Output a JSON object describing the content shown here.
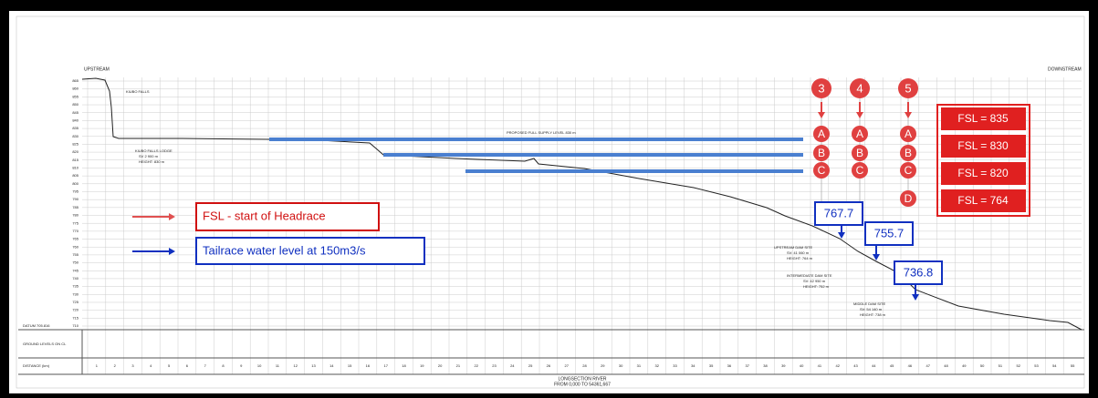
{
  "header": {
    "upstream": "UPSTREAM",
    "downstream": "DOWNSTREAM"
  },
  "annotations": {
    "falls": "KIUBO FALLS",
    "lodge": [
      "KIUBO FALLS LODGE",
      "SV 2 900 m",
      "HEIGHT: 830 m"
    ],
    "fsl_line": "PROPOSED FULL SUPPLY LEVEL 830 m",
    "upstream_dam": [
      "UPSTREAM DAM SITE",
      "SV: 41 060 m",
      "HEIGHT: 764 m"
    ],
    "intermediate_dam": [
      "INTERMEDIATE DAM SITE",
      "SV: 42 950 m",
      "HEIGHT: 752 m"
    ],
    "middle_dam": [
      "MIDDLE DAM SITE",
      "SV: 54 140 m",
      "HEIGHT: 738 m"
    ],
    "datum": "DATUM 705.816"
  },
  "y_axis": [
    865,
    860,
    855,
    850,
    845,
    840,
    835,
    830,
    825,
    820,
    815,
    810,
    805,
    800,
    795,
    790,
    785,
    780,
    775,
    770,
    765,
    760,
    755,
    750,
    745,
    740,
    735,
    730,
    725,
    720,
    715,
    710
  ],
  "sites": [
    {
      "number": "3",
      "letters": [
        "A",
        "B",
        "C"
      ]
    },
    {
      "number": "4",
      "letters": [
        "A",
        "B",
        "C"
      ]
    },
    {
      "number": "5",
      "letters": [
        "A",
        "B",
        "C",
        "D"
      ]
    }
  ],
  "fsl_boxes": [
    "FSL = 835",
    "FSL = 830",
    "FSL = 820",
    "FSL = 764"
  ],
  "legend": {
    "red": "FSL -  start of Headrace",
    "blue": "Tailrace water level at 150m3/s"
  },
  "callouts": [
    "767.7",
    "755.7",
    "736.8"
  ],
  "table": {
    "ground_label": "GROUND LEVELS ON CL",
    "distance_label": "DISTANCE (km)",
    "distances": [
      1,
      2,
      3,
      4,
      5,
      6,
      7,
      8,
      9,
      10,
      11,
      12,
      13,
      14,
      15,
      16,
      17,
      18,
      19,
      20,
      21,
      22,
      23,
      24,
      25,
      26,
      27,
      28,
      29,
      30,
      31,
      32,
      33,
      34,
      35,
      36,
      37,
      38,
      39,
      40,
      41,
      42,
      43,
      44,
      45,
      46,
      47,
      48,
      49,
      50,
      51,
      52,
      53,
      54,
      55
    ]
  },
  "footer": {
    "title": "LONGSECTION RIVER",
    "subtitle": "FROM 0,000 TO 54361,667"
  }
}
